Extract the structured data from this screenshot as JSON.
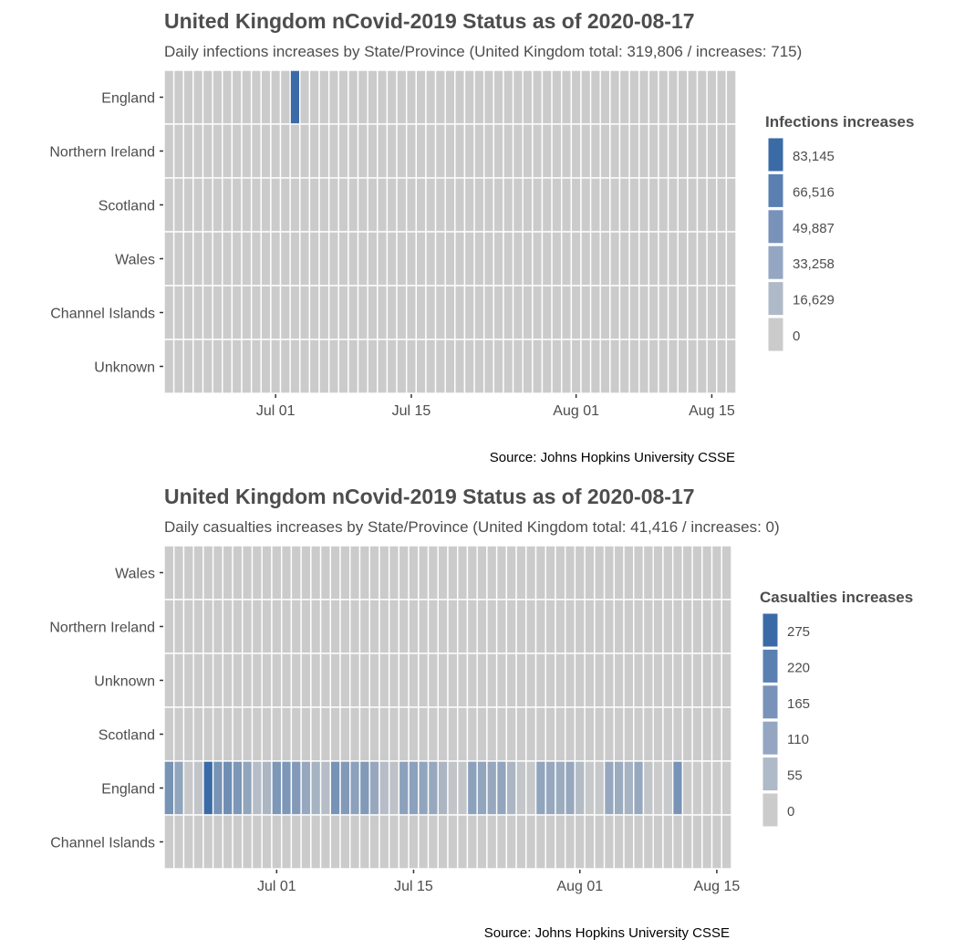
{
  "chart_data": [
    {
      "type": "heatmap",
      "title": "United Kingdom nCovid-2019 Status as of 2020-08-17",
      "subtitle": "Daily infections increases by State/Province (United Kingdom total: 319,806 / increases: 715)",
      "caption": "Source: Johns Hopkins University CSSE",
      "xlabel": "",
      "ylabel": "",
      "x_range": [
        "2020-06-20",
        "2020-08-17"
      ],
      "x_ticks": [
        {
          "date": "2020-07-01",
          "label": "Jul 01"
        },
        {
          "date": "2020-07-15",
          "label": "Jul 15"
        },
        {
          "date": "2020-08-01",
          "label": "Aug 01"
        },
        {
          "date": "2020-08-15",
          "label": "Aug 15"
        }
      ],
      "rows": [
        "England",
        "Northern Ireland",
        "Scotland",
        "Wales",
        "Channel Islands",
        "Unknown"
      ],
      "legend": {
        "title": "Infections increases",
        "position": "right",
        "labels": [
          "83,145",
          "66,516",
          "49,887",
          "33,258",
          "16,629",
          "0"
        ],
        "colors": [
          "#3b6ba6",
          "#5a80b2",
          "#7892ba",
          "#94a6c2",
          "#afbac8",
          "#cbcbcb"
        ]
      },
      "scale": {
        "low_color": "#cbcbcb",
        "high_color": "#3b6ba6",
        "max": 83145
      },
      "values": [
        {
          "row": "England",
          "date": "2020-07-03",
          "value": 83145
        }
      ],
      "default_value": 0
    },
    {
      "type": "heatmap",
      "title": "United Kingdom nCovid-2019 Status as of 2020-08-17",
      "subtitle": "Daily casualties increases by State/Province (United Kingdom total: 41,416 / increases: 0)",
      "caption": "Source: Johns Hopkins University CSSE",
      "xlabel": "",
      "ylabel": "",
      "x_range": [
        "2020-06-20",
        "2020-08-16"
      ],
      "x_ticks": [
        {
          "date": "2020-07-01",
          "label": "Jul 01"
        },
        {
          "date": "2020-07-15",
          "label": "Jul 15"
        },
        {
          "date": "2020-08-01",
          "label": "Aug 01"
        },
        {
          "date": "2020-08-15",
          "label": "Aug 15"
        }
      ],
      "rows": [
        "Wales",
        "Northern Ireland",
        "Unknown",
        "Scotland",
        "England",
        "Channel Islands"
      ],
      "legend": {
        "title": "Casualties increases",
        "position": "right",
        "labels": [
          "275",
          "220",
          "165",
          "110",
          "55",
          "0"
        ],
        "colors": [
          "#3b6ba6",
          "#5a80b2",
          "#7892ba",
          "#94a6c2",
          "#afbac8",
          "#cbcbcb"
        ]
      },
      "scale": {
        "low_color": "#cbcbcb",
        "high_color": "#3b6ba6",
        "max": 275
      },
      "values": [
        {
          "row": "England",
          "date": "2020-06-20",
          "value": 160
        },
        {
          "row": "England",
          "date": "2020-06-21",
          "value": 110
        },
        {
          "row": "England",
          "date": "2020-06-22",
          "value": 10
        },
        {
          "row": "England",
          "date": "2020-06-23",
          "value": 20
        },
        {
          "row": "England",
          "date": "2020-06-24",
          "value": 275
        },
        {
          "row": "England",
          "date": "2020-06-25",
          "value": 160
        },
        {
          "row": "England",
          "date": "2020-06-26",
          "value": 175
        },
        {
          "row": "England",
          "date": "2020-06-27",
          "value": 150
        },
        {
          "row": "England",
          "date": "2020-06-28",
          "value": 110
        },
        {
          "row": "England",
          "date": "2020-06-29",
          "value": 40
        },
        {
          "row": "England",
          "date": "2020-06-30",
          "value": 60
        },
        {
          "row": "England",
          "date": "2020-07-01",
          "value": 150
        },
        {
          "row": "England",
          "date": "2020-07-02",
          "value": 150
        },
        {
          "row": "England",
          "date": "2020-07-03",
          "value": 140
        },
        {
          "row": "England",
          "date": "2020-07-04",
          "value": 100
        },
        {
          "row": "England",
          "date": "2020-07-05",
          "value": 70
        },
        {
          "row": "England",
          "date": "2020-07-06",
          "value": 40
        },
        {
          "row": "England",
          "date": "2020-07-07",
          "value": 160
        },
        {
          "row": "England",
          "date": "2020-07-08",
          "value": 140
        },
        {
          "row": "England",
          "date": "2020-07-09",
          "value": 120
        },
        {
          "row": "England",
          "date": "2020-07-10",
          "value": 140
        },
        {
          "row": "England",
          "date": "2020-07-11",
          "value": 100
        },
        {
          "row": "England",
          "date": "2020-07-12",
          "value": 40
        },
        {
          "row": "England",
          "date": "2020-07-13",
          "value": 25
        },
        {
          "row": "England",
          "date": "2020-07-14",
          "value": 120
        },
        {
          "row": "England",
          "date": "2020-07-15",
          "value": 120
        },
        {
          "row": "England",
          "date": "2020-07-16",
          "value": 110
        },
        {
          "row": "England",
          "date": "2020-07-17",
          "value": 100
        },
        {
          "row": "England",
          "date": "2020-07-18",
          "value": 60
        },
        {
          "row": "England",
          "date": "2020-07-19",
          "value": 20
        },
        {
          "row": "England",
          "date": "2020-07-20",
          "value": 15
        },
        {
          "row": "England",
          "date": "2020-07-21",
          "value": 120
        },
        {
          "row": "England",
          "date": "2020-07-22",
          "value": 110
        },
        {
          "row": "England",
          "date": "2020-07-23",
          "value": 100
        },
        {
          "row": "England",
          "date": "2020-07-24",
          "value": 110
        },
        {
          "row": "England",
          "date": "2020-07-25",
          "value": 60
        },
        {
          "row": "England",
          "date": "2020-07-26",
          "value": 15
        },
        {
          "row": "England",
          "date": "2020-07-27",
          "value": 10
        },
        {
          "row": "England",
          "date": "2020-07-28",
          "value": 110
        },
        {
          "row": "England",
          "date": "2020-07-29",
          "value": 100
        },
        {
          "row": "England",
          "date": "2020-07-30",
          "value": 90
        },
        {
          "row": "England",
          "date": "2020-07-31",
          "value": 100
        },
        {
          "row": "England",
          "date": "2020-08-01",
          "value": 45
        },
        {
          "row": "England",
          "date": "2020-08-02",
          "value": 10
        },
        {
          "row": "England",
          "date": "2020-08-03",
          "value": 10
        },
        {
          "row": "England",
          "date": "2020-08-04",
          "value": 100
        },
        {
          "row": "England",
          "date": "2020-08-05",
          "value": 90
        },
        {
          "row": "England",
          "date": "2020-08-06",
          "value": 70
        },
        {
          "row": "England",
          "date": "2020-08-07",
          "value": 100
        },
        {
          "row": "England",
          "date": "2020-08-08",
          "value": 20
        },
        {
          "row": "England",
          "date": "2020-08-09",
          "value": 0
        },
        {
          "row": "England",
          "date": "2020-08-10",
          "value": 5
        },
        {
          "row": "England",
          "date": "2020-08-11",
          "value": 160
        },
        {
          "row": "England",
          "date": "2020-08-12",
          "value": 0
        }
      ],
      "default_value": 0
    }
  ]
}
